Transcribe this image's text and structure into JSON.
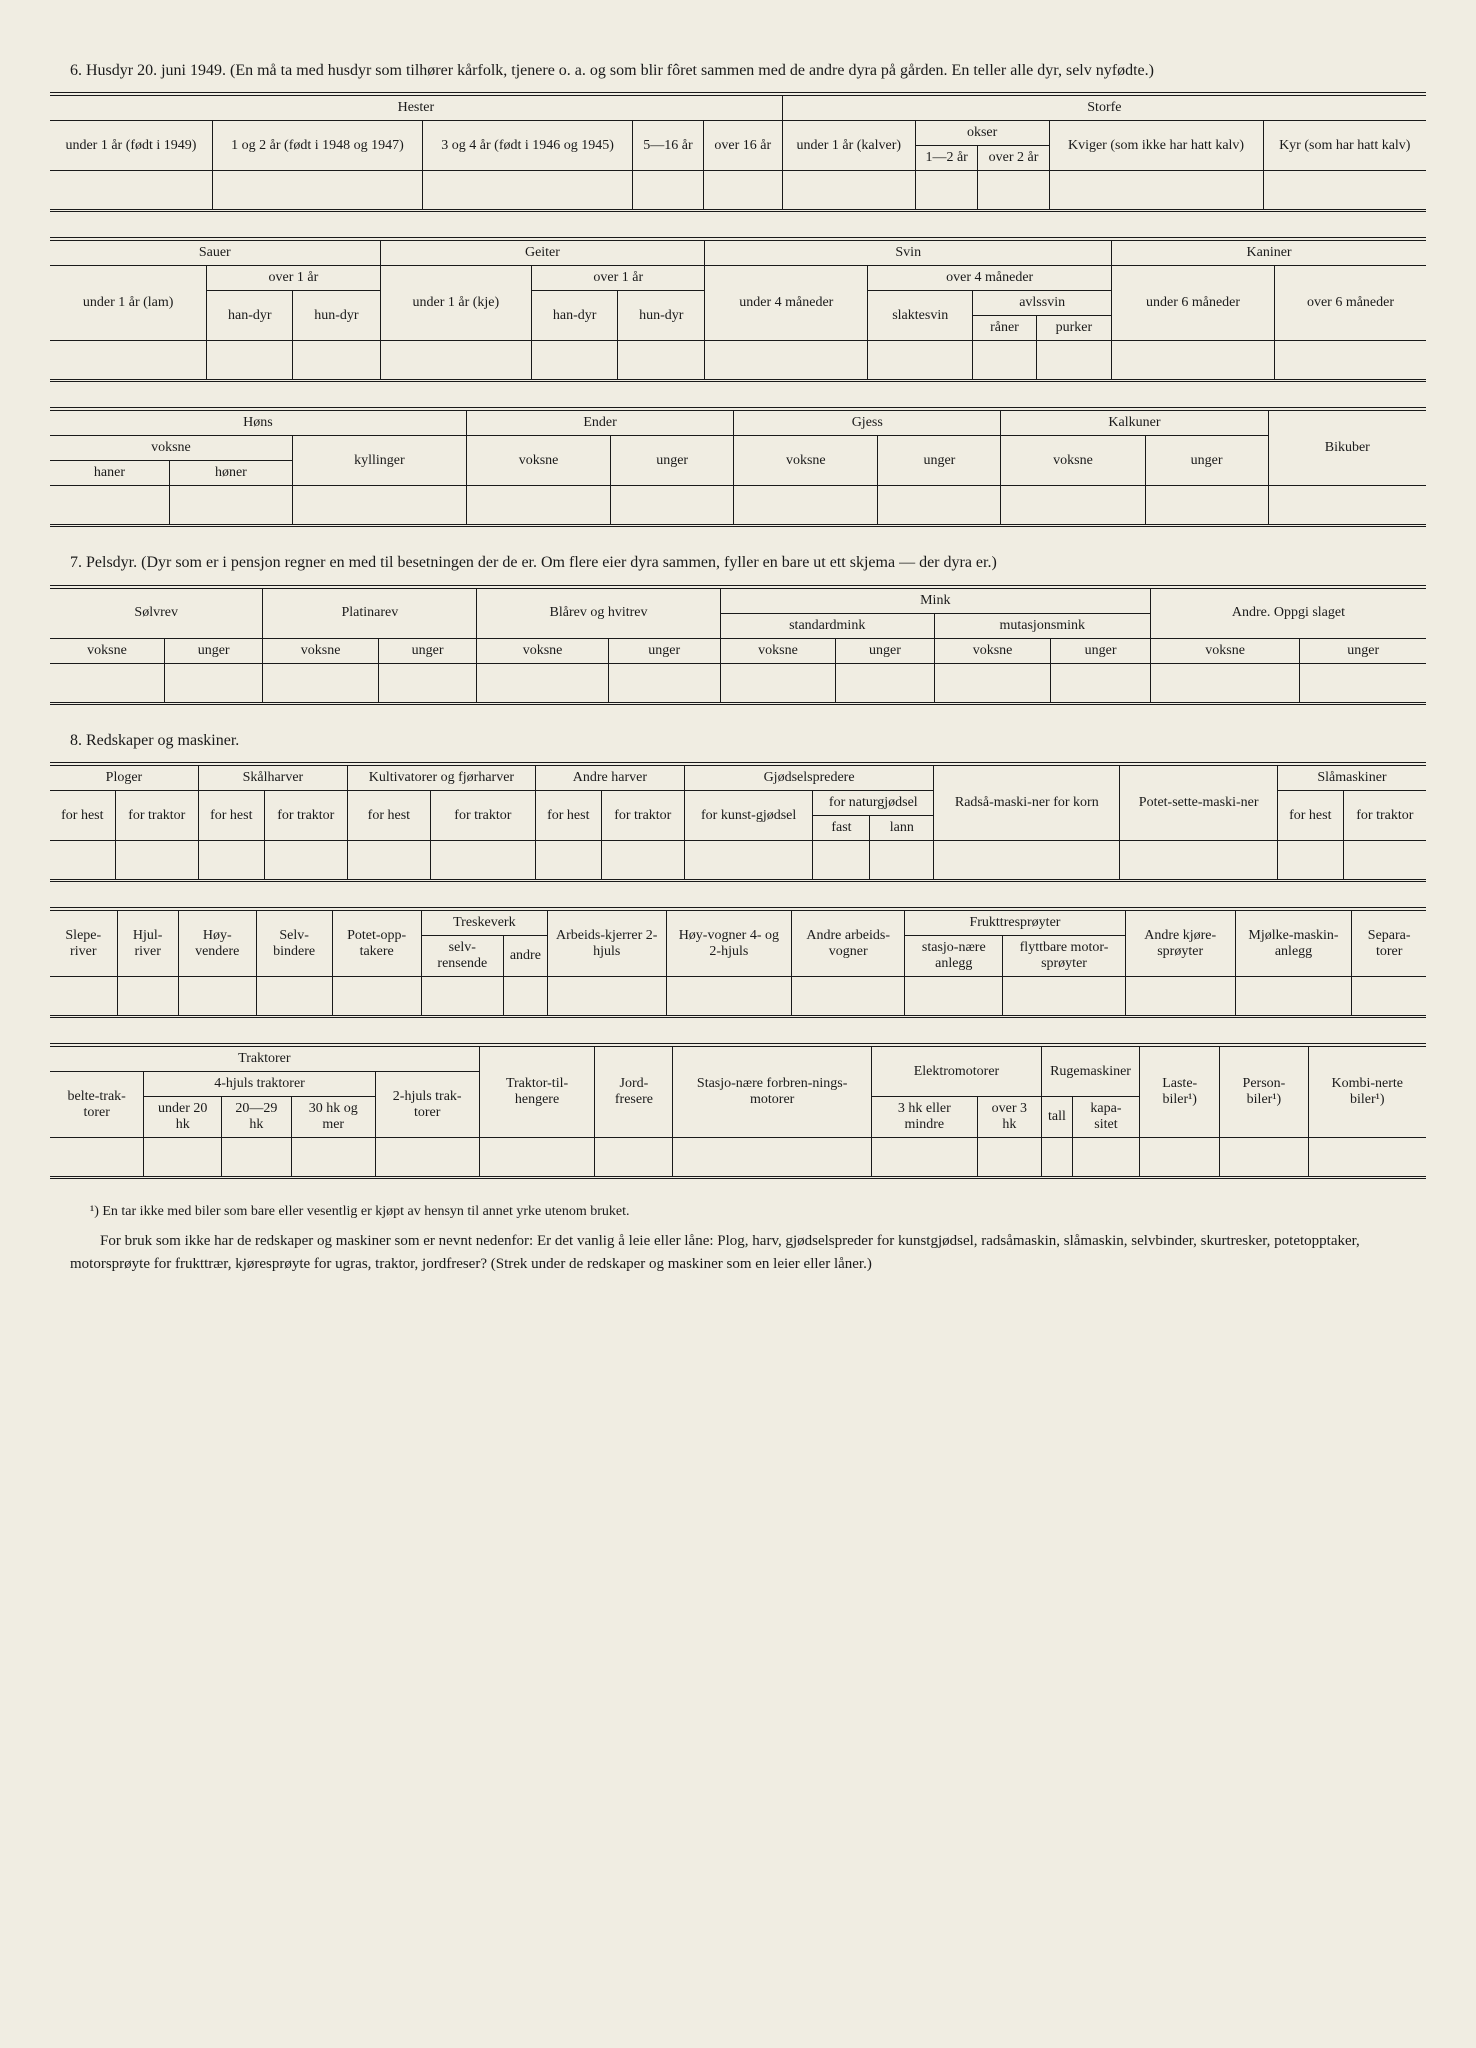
{
  "section6": {
    "title": "6. Husdyr 20. juni 1949. (En må ta med husdyr som tilhører kårfolk, tjenere o. a. og som blir fôret sammen med de andre dyra på gården. En teller alle dyr, selv nyfødte.)",
    "hester": {
      "label": "Hester",
      "cols": [
        "under 1 år (født i 1949)",
        "1 og 2 år (født i 1948 og 1947)",
        "3 og 4 år (født i 1946 og 1945)",
        "5—16 år",
        "over 16 år"
      ]
    },
    "storfe": {
      "label": "Storfe",
      "under1": "under 1 år (kalver)",
      "okser": "okser",
      "okser_cols": [
        "1—2 år",
        "over 2 år"
      ],
      "kviger": "Kviger (som ikke har hatt kalv)",
      "kyr": "Kyr (som har hatt kalv)"
    },
    "sauer": {
      "label": "Sauer",
      "under1": "under 1 år (lam)",
      "over1": "over 1 år",
      "cols": [
        "han-dyr",
        "hun-dyr"
      ]
    },
    "geiter": {
      "label": "Geiter",
      "under1": "under 1 år (kje)",
      "over1": "over 1 år",
      "cols": [
        "han-dyr",
        "hun-dyr"
      ]
    },
    "svin": {
      "label": "Svin",
      "under4": "under 4 måneder",
      "over4": "over 4 måneder",
      "slaktesvin": "slaktesvin",
      "avlssvin": "avlssvin",
      "cols": [
        "råner",
        "purker"
      ]
    },
    "kaniner": {
      "label": "Kaniner",
      "cols": [
        "under 6 måneder",
        "over 6 måneder"
      ]
    },
    "hons": {
      "label": "Høns",
      "voksne": "voksne",
      "cols": [
        "haner",
        "høner"
      ],
      "kyllinger": "kyllinger"
    },
    "ender": {
      "label": "Ender",
      "cols": [
        "voksne",
        "unger"
      ]
    },
    "gjess": {
      "label": "Gjess",
      "cols": [
        "voksne",
        "unger"
      ]
    },
    "kalkuner": {
      "label": "Kalkuner",
      "cols": [
        "voksne",
        "unger"
      ]
    },
    "bikuber": "Bikuber"
  },
  "section7": {
    "title": "7. Pelsdyr. (Dyr som er i pensjon regner en med til besetningen der de er. Om flere eier dyra sammen, fyller en bare ut ett skjema — der dyra er.)",
    "solvrev": "Sølvrev",
    "platinarev": "Platinarev",
    "blarev": "Blårev og hvitrev",
    "mink": "Mink",
    "standardmink": "standardmink",
    "mutasjonsmink": "mutasjonsmink",
    "andre": "Andre. Oppgi slaget",
    "voksne": "voksne",
    "unger": "unger"
  },
  "section8": {
    "title": "8. Redskaper og maskiner.",
    "row1": {
      "ploger": "Ploger",
      "skalharver": "Skålharver",
      "kultivatorer": "Kultivatorer og fjørharver",
      "andreharver": "Andre harver",
      "gjodsel": "Gjødselspredere",
      "radsa": "Radså-maski-ner for korn",
      "potet": "Potet-sette-maski-ner",
      "slamaskiner": "Slåmaskiner",
      "forhest": "for hest",
      "fortraktor": "for traktor",
      "forkunst": "for kunst-gjødsel",
      "fornatur": "for naturgjødsel",
      "fast": "fast",
      "lann": "lann"
    },
    "row2": {
      "sleperiver": "Slepe-river",
      "hjulriver": "Hjul-river",
      "hoyvendere": "Høy-vendere",
      "selvbindere": "Selv-bindere",
      "potetopp": "Potet-opp-takere",
      "treskeverk": "Treskeverk",
      "selvrensende": "selv-rensende",
      "andre": "andre",
      "arbeidskjerrer": "Arbeids-kjerrer 2-hjuls",
      "hoyvogner": "Høy-vogner 4- og 2-hjuls",
      "andrearbeids": "Andre arbeids-vogner",
      "fruktsproyter": "Frukttresprøyter",
      "stasjonare": "stasjo-nære anlegg",
      "flyttbare": "flyttbare motor-sprøyter",
      "andrekjore": "Andre kjøre-sprøyter",
      "mjolke": "Mjølke-maskin-anlegg",
      "separa": "Separa-torer"
    },
    "row3": {
      "traktorer": "Traktorer",
      "belte": "belte-trak-torer",
      "fourhjuls": "4-hjuls traktorer",
      "under20": "under 20 hk",
      "r2029": "20—29 hk",
      "r30": "30 hk og mer",
      "tohjuls": "2-hjuls trak-torer",
      "tilhengere": "Traktor-til-hengere",
      "jordfresere": "Jord-fresere",
      "stasjonare": "Stasjo-nære forbren-nings-motorer",
      "elektro": "Elektromotorer",
      "hk3mindre": "3 hk eller mindre",
      "over3hk": "over 3 hk",
      "rugemaskiner": "Rugemaskiner",
      "tall": "tall",
      "kapasitet": "kapa-sitet",
      "lastebiler": "Laste-biler¹)",
      "personbiler": "Person-biler¹)",
      "kombinerte": "Kombi-nerte biler¹)"
    }
  },
  "footnote": "¹) En tar ikke med biler som bare eller vesentlig er kjøpt av hensyn til annet yrke utenom bruket.",
  "footer": "For bruk som ikke har de redskaper og maskiner som er nevnt nedenfor: Er det vanlig å leie eller låne: Plog, harv, gjødselspreder for kunstgjødsel, radsåmaskin, slåmaskin, selvbinder, skurtresker, potetopptaker, motorsprøyte for frukttrær, kjøresprøyte for ugras, traktor, jordfreser? (Strek under de redskaper og maskiner som en leier eller låner.)"
}
